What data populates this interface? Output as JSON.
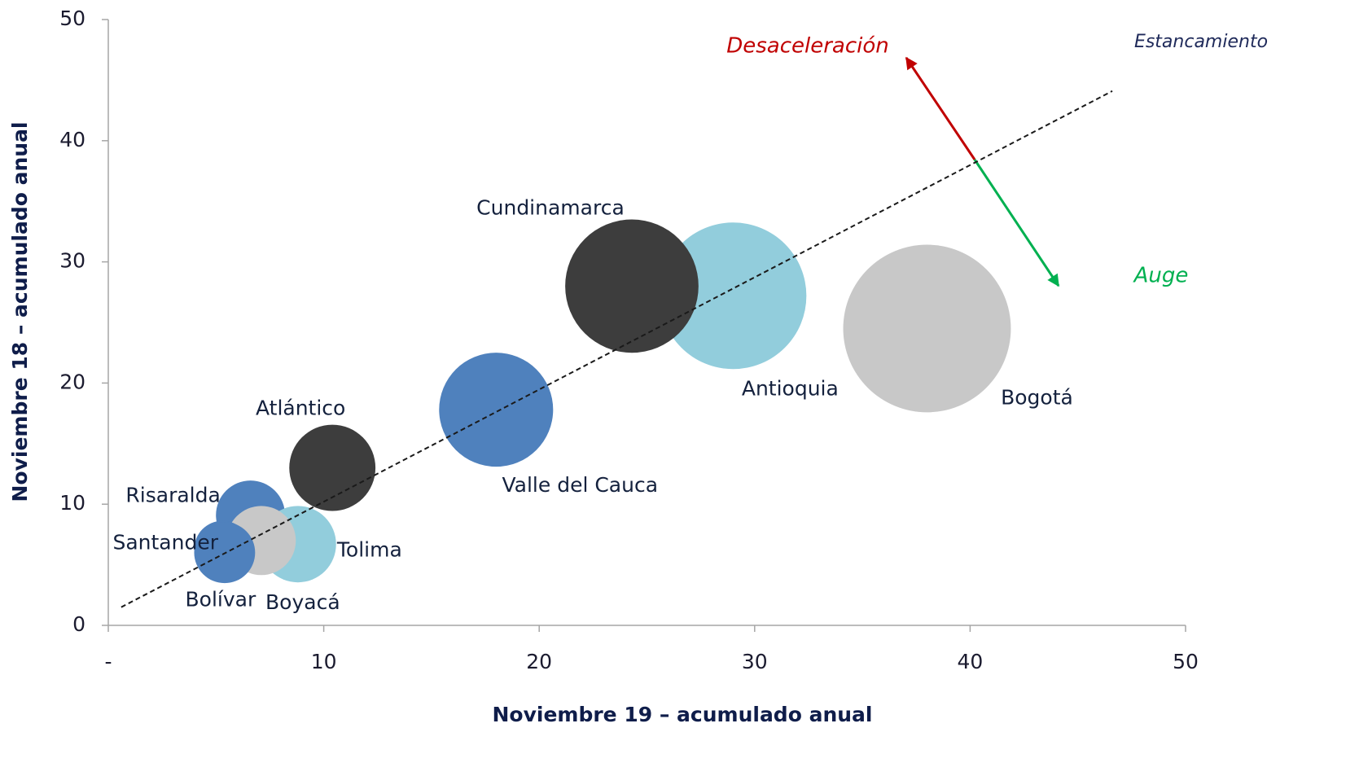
{
  "chart_data": {
    "type": "bubble",
    "xlabel": "Noviembre 19 – acumulado anual",
    "ylabel": "Noviembre 18 – acumulado anual",
    "xlim": [
      0,
      50
    ],
    "ylim": [
      0,
      50
    ],
    "xticks": [
      {
        "value": 0,
        "label": "-"
      },
      10,
      20,
      30,
      40,
      50
    ],
    "yticks": [
      0,
      10,
      20,
      30,
      40,
      50
    ],
    "points": [
      {
        "name": "Bogotá",
        "x": 38.0,
        "y": 24.5,
        "size": 106,
        "color": "#c8c8c8"
      },
      {
        "name": "Antioquia",
        "x": 29.0,
        "y": 27.2,
        "size": 81,
        "color": "#92cddc"
      },
      {
        "name": "Cundinamarca",
        "x": 24.3,
        "y": 28.0,
        "size": 67,
        "color": "#3d3d3d"
      },
      {
        "name": "Valle del Cauca",
        "x": 18.0,
        "y": 17.8,
        "size": 49,
        "color": "#4f81bd"
      },
      {
        "name": "Atlántico",
        "x": 10.4,
        "y": 13.0,
        "size": 28,
        "color": "#3d3d3d"
      },
      {
        "name": "Risaralda",
        "x": 6.6,
        "y": 9.1,
        "size": 18,
        "color": "#4f81bd"
      },
      {
        "name": "Tolima",
        "x": 8.8,
        "y": 6.7,
        "size": 22,
        "color": "#92cddc"
      },
      {
        "name": "Boyacá",
        "x": 7.1,
        "y": 7.0,
        "size": 18,
        "color": "#c8c8c8"
      },
      {
        "name": "Santander",
        "x": 5.3,
        "y": 6.3,
        "size": 12,
        "color": "#4f81bd"
      },
      {
        "name": "Bolívar",
        "x": 5.4,
        "y": 6.0,
        "size": 14,
        "color": "#4f81bd"
      }
    ],
    "trend_line": {
      "x": [
        0.6,
        46.6
      ],
      "y": [
        1.5,
        44.1
      ]
    },
    "annotations": [
      {
        "text": "Desaceleración",
        "color": "#c00000"
      },
      {
        "text": "Estancamiento",
        "color": "#1f2a5a"
      },
      {
        "text": "Auge",
        "color": "#00b050"
      }
    ]
  }
}
